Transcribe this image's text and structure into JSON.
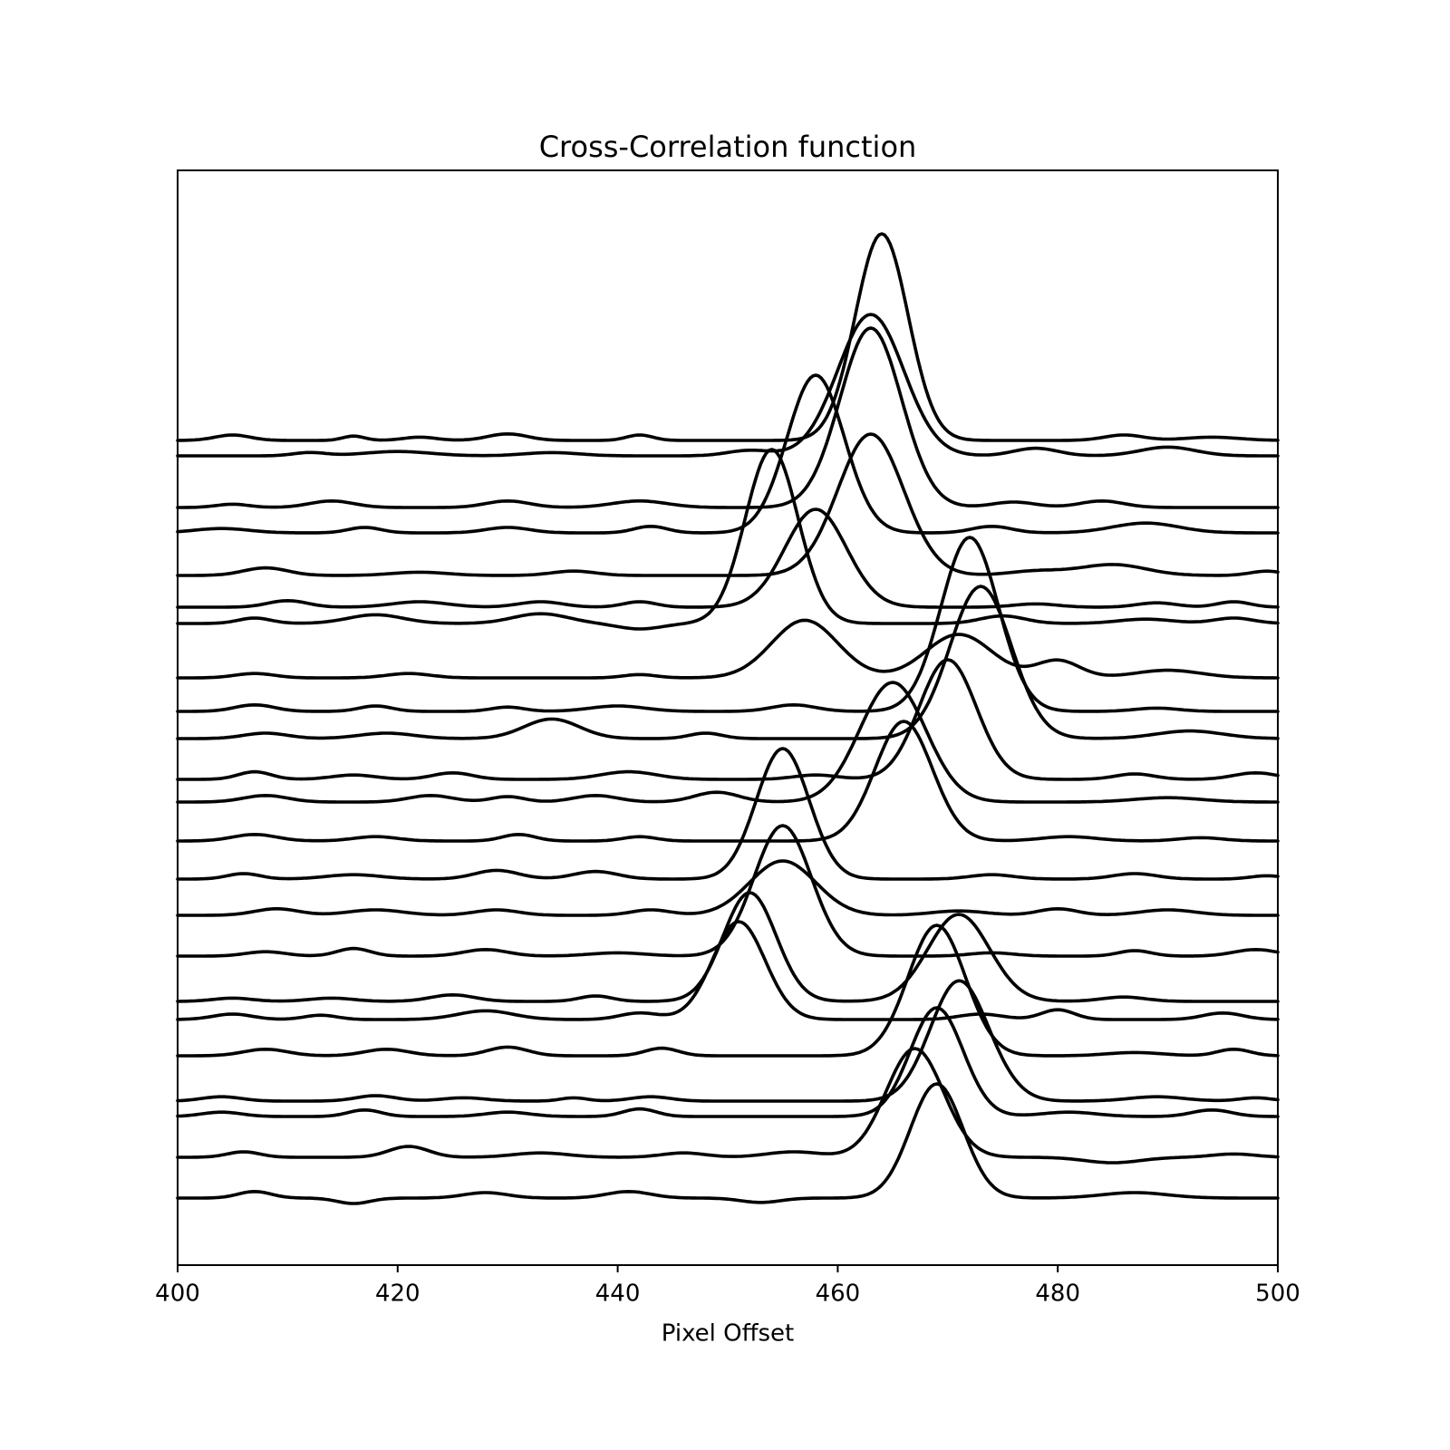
{
  "chart_data": {
    "type": "line",
    "title": "Cross-Correlation function",
    "xlabel": "Pixel Offset",
    "ylabel": "",
    "xlim": [
      400,
      500
    ],
    "xticks": [
      400,
      420,
      440,
      460,
      480,
      500
    ],
    "y_tick_labels_shown": false,
    "grid": false,
    "legend": "none",
    "line_color": "#000000",
    "note_layout": "waterfall: vertical offsets between the traces are layout, not data",
    "series": [
      {
        "peak": [
          464,
          19.0,
          2.4
        ],
        "bumps": [
          [
            405,
            0.5,
            1.6
          ],
          [
            416,
            0.4,
            1.0
          ],
          [
            422,
            0.3,
            1.5
          ],
          [
            430,
            0.6,
            1.8
          ],
          [
            442,
            0.5,
            1.2
          ],
          [
            486,
            0.5,
            1.8
          ],
          [
            494,
            0.3,
            2.5
          ]
        ],
        "base": 0.0
      },
      {
        "peak": [
          463,
          13.0,
          3.0
        ],
        "bumps": [
          [
            412,
            0.3,
            1.5
          ],
          [
            420,
            0.4,
            3.0
          ],
          [
            434,
            0.3,
            2.5
          ],
          [
            452,
            0.5,
            2.0
          ],
          [
            478,
            0.7,
            2.0
          ],
          [
            490,
            0.8,
            2.5
          ]
        ],
        "base": 0.0
      },
      {
        "peak": [
          463,
          16.5,
          2.8
        ],
        "bumps": [
          [
            405,
            0.3,
            1.5
          ],
          [
            414,
            0.6,
            2.0
          ],
          [
            430,
            0.6,
            2.0
          ],
          [
            442,
            0.6,
            2.5
          ],
          [
            476,
            0.5,
            2.0
          ],
          [
            484,
            0.6,
            2.0
          ]
        ],
        "base": 0.0
      },
      {
        "peak": [
          458,
          14.5,
          2.6
        ],
        "bumps": [
          [
            404,
            0.4,
            2.5
          ],
          [
            417,
            0.5,
            1.5
          ],
          [
            430,
            0.5,
            2.0
          ],
          [
            443,
            0.6,
            1.5
          ],
          [
            474,
            0.6,
            1.8
          ],
          [
            488,
            0.9,
            3.0
          ]
        ],
        "base": 0.0
      },
      {
        "peak": [
          463,
          13.0,
          3.0
        ],
        "bumps": [
          [
            408,
            0.7,
            2.0
          ],
          [
            422,
            0.3,
            2.5
          ],
          [
            436,
            0.4,
            2.0
          ],
          [
            478,
            0.4,
            2.5
          ],
          [
            485,
            1.0,
            3.0
          ],
          [
            499,
            0.4,
            1.5
          ]
        ],
        "base": 0.0
      },
      {
        "peak": [
          458,
          9.0,
          2.8
        ],
        "bumps": [
          [
            410,
            0.6,
            1.8
          ],
          [
            422,
            0.5,
            2.5
          ],
          [
            433,
            0.5,
            2.0
          ],
          [
            442,
            0.5,
            1.5
          ],
          [
            478,
            0.3,
            2.0
          ],
          [
            489,
            0.4,
            1.8
          ],
          [
            496,
            0.5,
            1.5
          ]
        ],
        "base": 0.0
      },
      {
        "peak": [
          454,
          16.0,
          2.4
        ],
        "bumps": [
          [
            407,
            0.5,
            1.5
          ],
          [
            418,
            0.8,
            2.5
          ],
          [
            433,
            0.9,
            2.5
          ],
          [
            442,
            -0.5,
            2.0
          ],
          [
            475,
            0.7,
            2.0
          ],
          [
            488,
            0.4,
            2.5
          ],
          [
            496,
            0.5,
            1.8
          ]
        ],
        "base": 0.0
      },
      {
        "peak": [
          457,
          5.3,
          3.0
        ],
        "bumps": [
          [
            407,
            0.4,
            1.8
          ],
          [
            421,
            0.4,
            2.0
          ],
          [
            442,
            0.3,
            1.5
          ],
          [
            471,
            4.0,
            3.0
          ],
          [
            480,
            1.6,
            2.0
          ],
          [
            490,
            0.7,
            3.0
          ]
        ],
        "base": 0.0
      },
      {
        "peak": [
          472,
          16.0,
          2.6
        ],
        "bumps": [
          [
            407,
            0.6,
            1.8
          ],
          [
            418,
            0.5,
            1.5
          ],
          [
            430,
            0.4,
            1.5
          ],
          [
            440,
            0.5,
            2.5
          ],
          [
            456,
            0.6,
            2.0
          ],
          [
            489,
            0.3,
            2.0
          ]
        ],
        "base": 0.0
      },
      {
        "peak": [
          473,
          14.0,
          2.8
        ],
        "bumps": [
          [
            408,
            0.5,
            2.0
          ],
          [
            419,
            0.5,
            2.5
          ],
          [
            434,
            1.8,
            2.5
          ],
          [
            448,
            0.5,
            1.5
          ],
          [
            492,
            0.7,
            3.0
          ]
        ],
        "base": 0.0
      },
      {
        "peak": [
          470,
          11.0,
          2.6
        ],
        "bumps": [
          [
            407,
            0.7,
            1.5
          ],
          [
            416,
            0.4,
            2.0
          ],
          [
            425,
            0.6,
            1.8
          ],
          [
            441,
            0.7,
            2.5
          ],
          [
            458,
            0.4,
            2.0
          ],
          [
            487,
            0.5,
            1.8
          ],
          [
            498,
            0.6,
            2.0
          ]
        ],
        "base": 0.0
      },
      {
        "peak": [
          465,
          11.0,
          3.0
        ],
        "bumps": [
          [
            408,
            0.6,
            2.0
          ],
          [
            423,
            0.6,
            2.0
          ],
          [
            430,
            0.5,
            1.5
          ],
          [
            438,
            0.6,
            2.0
          ],
          [
            449,
            0.9,
            2.0
          ],
          [
            490,
            0.4,
            3.0
          ]
        ],
        "base": 0.0
      },
      {
        "peak": [
          466,
          11.0,
          2.6
        ],
        "bumps": [
          [
            407,
            0.6,
            2.0
          ],
          [
            418,
            0.4,
            2.0
          ],
          [
            431,
            0.6,
            1.5
          ],
          [
            442,
            0.4,
            1.5
          ],
          [
            481,
            0.4,
            2.5
          ],
          [
            493,
            0.3,
            2.0
          ]
        ],
        "base": 0.0
      },
      {
        "peak": [
          455,
          12.0,
          2.4
        ],
        "bumps": [
          [
            406,
            0.5,
            1.5
          ],
          [
            416,
            0.4,
            2.5
          ],
          [
            429,
            0.8,
            2.0
          ],
          [
            438,
            0.7,
            2.0
          ],
          [
            474,
            0.4,
            2.0
          ],
          [
            487,
            0.5,
            2.0
          ],
          [
            499,
            0.3,
            1.5
          ]
        ],
        "base": 0.0
      },
      {
        "peak": [
          455,
          5.0,
          3.0
        ],
        "bumps": [
          [
            409,
            0.6,
            2.0
          ],
          [
            418,
            0.5,
            2.5
          ],
          [
            429,
            0.5,
            2.0
          ],
          [
            443,
            0.5,
            1.8
          ],
          [
            471,
            0.4,
            2.5
          ],
          [
            480,
            0.6,
            1.8
          ],
          [
            490,
            0.5,
            2.5
          ]
        ],
        "base": 0.0
      },
      {
        "peak": [
          455,
          12.0,
          2.6
        ],
        "bumps": [
          [
            408,
            0.4,
            1.8
          ],
          [
            416,
            0.7,
            1.5
          ],
          [
            428,
            0.6,
            2.0
          ],
          [
            440,
            0.3,
            2.5
          ],
          [
            474,
            0.3,
            2.0
          ],
          [
            487,
            0.5,
            1.5
          ],
          [
            498,
            0.6,
            2.0
          ]
        ],
        "base": 0.0
      },
      {
        "peak": [
          452,
          10.0,
          2.4
        ],
        "bumps": [
          [
            405,
            0.3,
            1.8
          ],
          [
            414,
            0.3,
            2.0
          ],
          [
            425,
            0.6,
            2.0
          ],
          [
            438,
            0.5,
            1.5
          ],
          [
            471,
            8.0,
            2.8
          ],
          [
            486,
            0.4,
            2.0
          ]
        ],
        "base": 0.0
      },
      {
        "peak": [
          451,
          9.0,
          2.4
        ],
        "bumps": [
          [
            405,
            0.5,
            1.8
          ],
          [
            413,
            0.4,
            1.5
          ],
          [
            428,
            0.8,
            2.5
          ],
          [
            442,
            0.6,
            1.8
          ],
          [
            473,
            0.5,
            2.0
          ],
          [
            480,
            0.9,
            1.5
          ],
          [
            495,
            0.6,
            1.8
          ]
        ],
        "base": 0.0
      },
      {
        "peak": [
          469,
          12.0,
          2.6
        ],
        "bumps": [
          [
            408,
            0.6,
            2.0
          ],
          [
            419,
            0.6,
            2.0
          ],
          [
            430,
            0.8,
            1.8
          ],
          [
            444,
            0.7,
            1.5
          ],
          [
            487,
            0.3,
            2.5
          ],
          [
            496,
            0.6,
            1.5
          ]
        ],
        "base": 0.0
      },
      {
        "peak": [
          471,
          11.0,
          2.6
        ],
        "bumps": [
          [
            404,
            0.4,
            1.8
          ],
          [
            418,
            0.5,
            1.8
          ],
          [
            426,
            0.3,
            2.0
          ],
          [
            436,
            0.3,
            1.2
          ],
          [
            443,
            0.4,
            1.8
          ],
          [
            475,
            0.5,
            2.0
          ],
          [
            489,
            0.4,
            2.5
          ],
          [
            498,
            0.3,
            1.5
          ]
        ],
        "base": 0.0
      },
      {
        "peak": [
          469,
          10.0,
          2.4
        ],
        "bumps": [
          [
            404,
            0.4,
            1.8
          ],
          [
            417,
            0.6,
            1.5
          ],
          [
            430,
            0.4,
            2.0
          ],
          [
            442,
            0.7,
            1.5
          ],
          [
            481,
            0.4,
            2.5
          ],
          [
            494,
            0.6,
            1.8
          ]
        ],
        "base": 0.0
      },
      {
        "peak": [
          467,
          10.0,
          2.6
        ],
        "bumps": [
          [
            406,
            0.5,
            1.5
          ],
          [
            421,
            1.0,
            1.8
          ],
          [
            433,
            0.4,
            2.5
          ],
          [
            446,
            0.4,
            2.0
          ],
          [
            456,
            0.5,
            2.5
          ],
          [
            485,
            -0.5,
            2.5
          ],
          [
            496,
            0.3,
            2.0
          ]
        ],
        "base": 0.0
      },
      {
        "peak": [
          469,
          10.5,
          2.4
        ],
        "bumps": [
          [
            407,
            0.6,
            1.5
          ],
          [
            416,
            -0.5,
            1.5
          ],
          [
            428,
            0.5,
            2.0
          ],
          [
            441,
            0.6,
            2.0
          ],
          [
            453,
            -0.4,
            1.8
          ],
          [
            487,
            0.5,
            3.0
          ]
        ],
        "base": 0.0
      }
    ]
  }
}
